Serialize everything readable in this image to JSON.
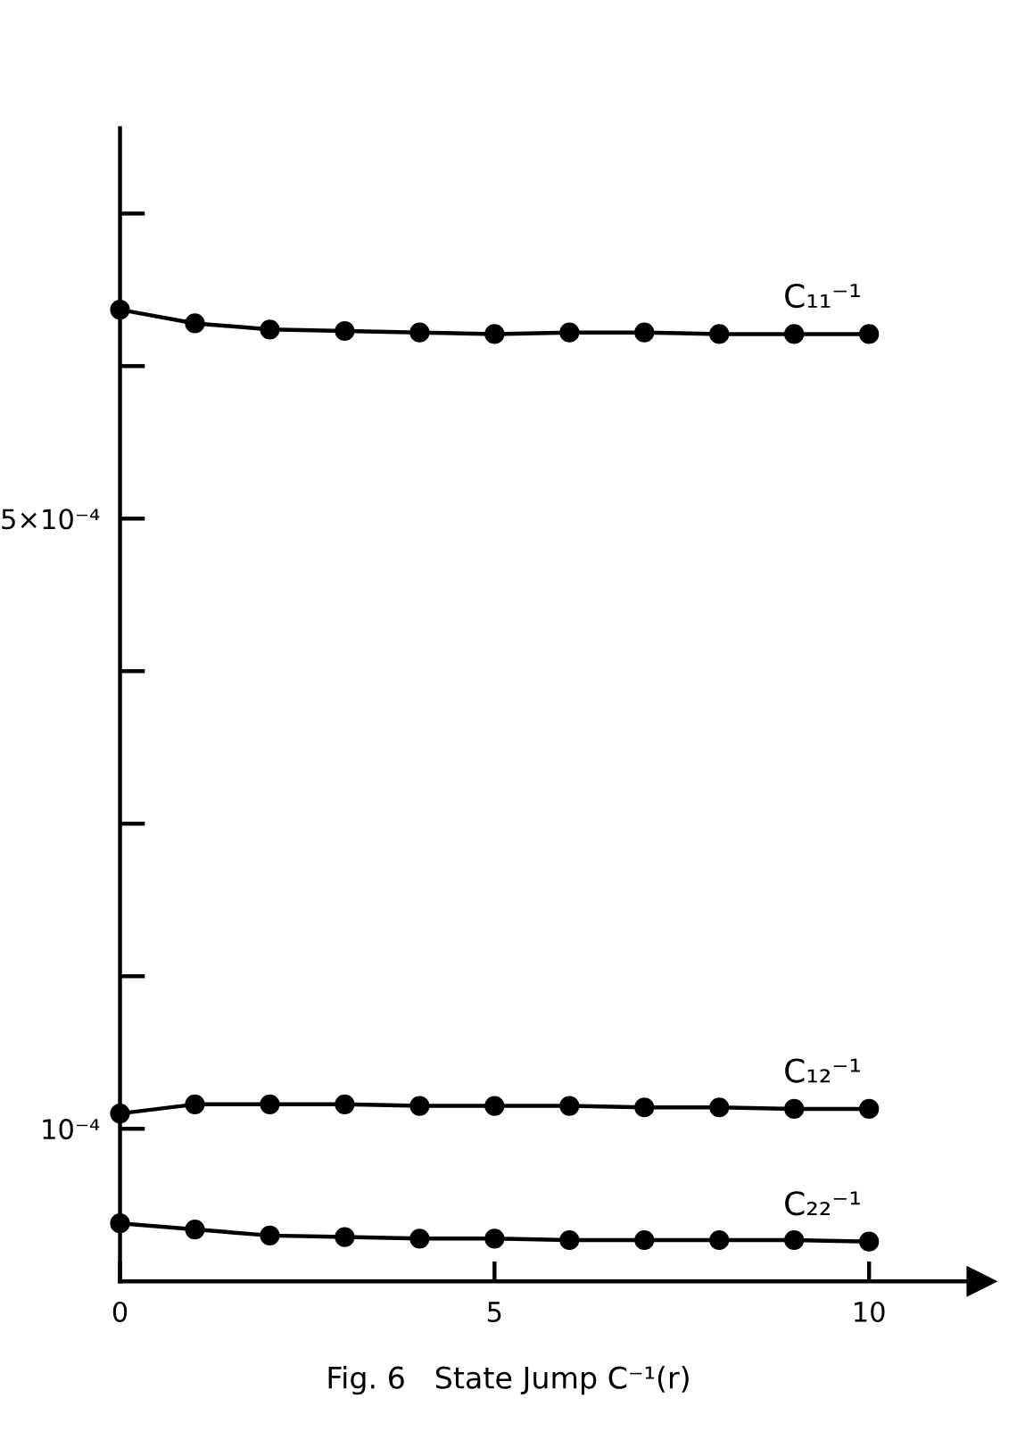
{
  "chart_data": {
    "type": "line",
    "title": "Fig. 6   State Jump C⁻¹(r)",
    "x": [
      0,
      1,
      2,
      3,
      4,
      5,
      6,
      7,
      8,
      9,
      10
    ],
    "series": [
      {
        "name": "C₁₁⁻¹",
        "color": "#000000",
        "values": [
          0.000637,
          0.000628,
          0.000624,
          0.000623,
          0.000622,
          0.000621,
          0.000622,
          0.000622,
          0.000621,
          0.000621,
          0.000621
        ]
      },
      {
        "name": "C₁₂⁻¹",
        "color": "#000000",
        "values": [
          0.00011,
          0.000116,
          0.000116,
          0.000116,
          0.000115,
          0.000115,
          0.000115,
          0.000114,
          0.000114,
          0.000113,
          0.000113
        ]
      },
      {
        "name": "C₂₂⁻¹",
        "color": "#000000",
        "values": [
          3.8e-05,
          3.4e-05,
          3e-05,
          2.9e-05,
          2.8e-05,
          2.8e-05,
          2.7e-05,
          2.7e-05,
          2.7e-05,
          2.7e-05,
          2.6e-05
        ]
      }
    ],
    "xlim": [
      0,
      11.5
    ],
    "xticks": [
      0,
      5,
      10
    ],
    "ylim": [
      0,
      0.000756
    ],
    "yticks": [
      {
        "value": 0.0001,
        "label": "10⁻⁴"
      },
      {
        "value": 0.0002,
        "label": null
      },
      {
        "value": 0.0003,
        "label": null
      },
      {
        "value": 0.0004,
        "label": null
      },
      {
        "value": 0.0005,
        "label": "5×10⁻⁴"
      },
      {
        "value": 0.0006,
        "label": null
      },
      {
        "value": 0.0007,
        "label": null
      }
    ],
    "marker": "circle",
    "line_style": "solid"
  }
}
